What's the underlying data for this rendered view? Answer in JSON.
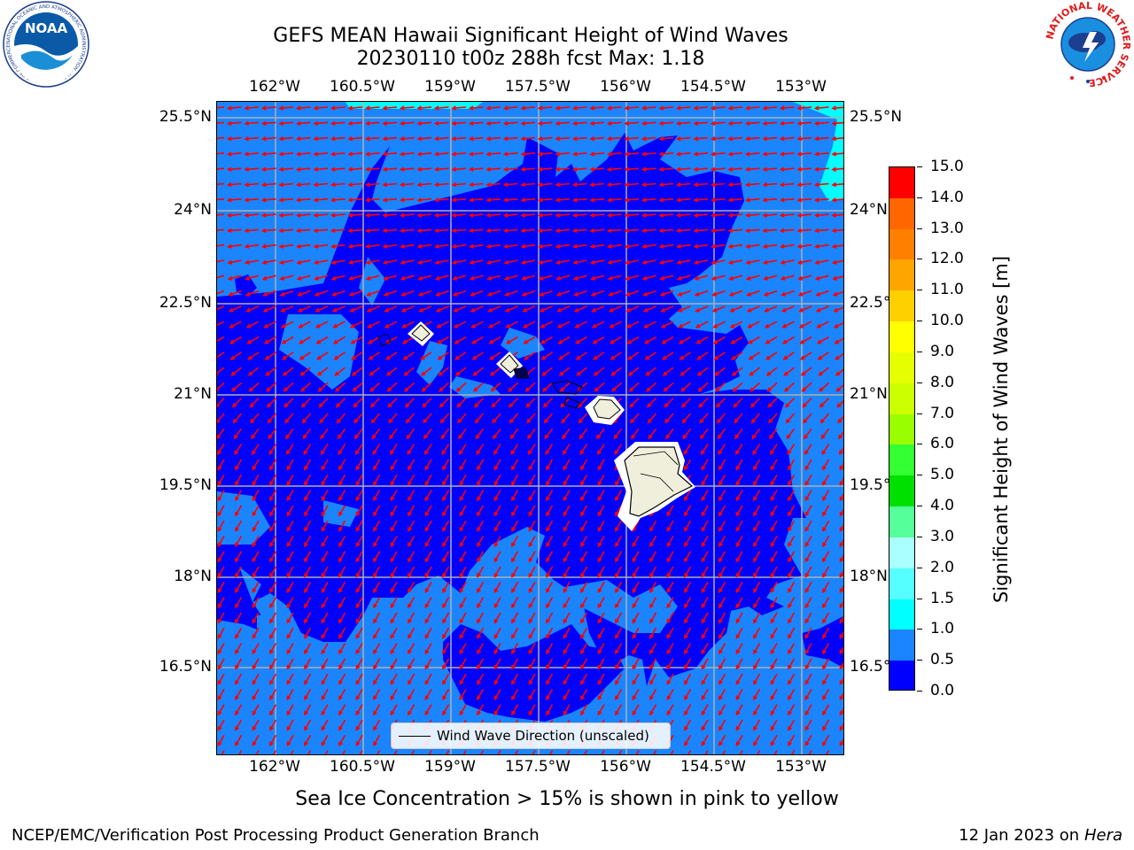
{
  "title": {
    "line1": "GEFS MEAN Hawaii Significant Height of Wind Waves",
    "line2": "20230110 t00z 288h fcst   Max: 1.18"
  },
  "map": {
    "longitude_ticks": [
      "162°W",
      "160.5°W",
      "159°W",
      "157.5°W",
      "156°W",
      "154.5°W",
      "153°W"
    ],
    "latitude_ticks": [
      "25.5°N",
      "24°N",
      "22.5°N",
      "21°N",
      "19.5°N",
      "18°N",
      "16.5°N"
    ],
    "legend_label": "Wind Wave Direction (unscaled)",
    "colors": {
      "ocean_0_to_0_5": "#0000ff",
      "ocean_0_5_to_1_0": "#1a85ff",
      "ocean_1_0_to_1_5": "#00ffff",
      "land": "#efefdc",
      "arrow": "#ff0000"
    }
  },
  "colorbar": {
    "title": "Significant Height of Wind Waves [m]",
    "ticks": [
      "15.0",
      "14.0",
      "13.0",
      "12.0",
      "11.0",
      "10.0",
      "9.0",
      "8.0",
      "7.0",
      "6.0",
      "5.0",
      "4.0",
      "3.0",
      "2.0",
      "1.5",
      "1.0",
      "0.5",
      "0.0"
    ],
    "colors_top_to_bottom": [
      "#ff0000",
      "#ff3300",
      "#ff6600",
      "#ff8000",
      "#ffa500",
      "#ffd000",
      "#ffff00",
      "#e6ff00",
      "#ccff00",
      "#99ff00",
      "#33ff33",
      "#00e000",
      "#55ff99",
      "#aaffff",
      "#55ffff",
      "#00ffff",
      "#1a85ff",
      "#0000ff"
    ]
  },
  "subtitle": "Sea Ice Concentration > 15% is shown in pink to yellow",
  "footer": {
    "left": "NCEP/EMC/Verification Post Processing Product Generation Branch",
    "right_prefix": "12 Jan 2023 on ",
    "right_host": "Hera"
  },
  "logos": {
    "noaa_text": "NOAA",
    "noaa_ring": "NATIONAL OCEANIC AND ATMOSPHERIC ADMINISTRATION · U.S. DEPARTMENT OF COMMERCE",
    "nws_ring": "NATIONAL WEATHER SERVICE"
  }
}
